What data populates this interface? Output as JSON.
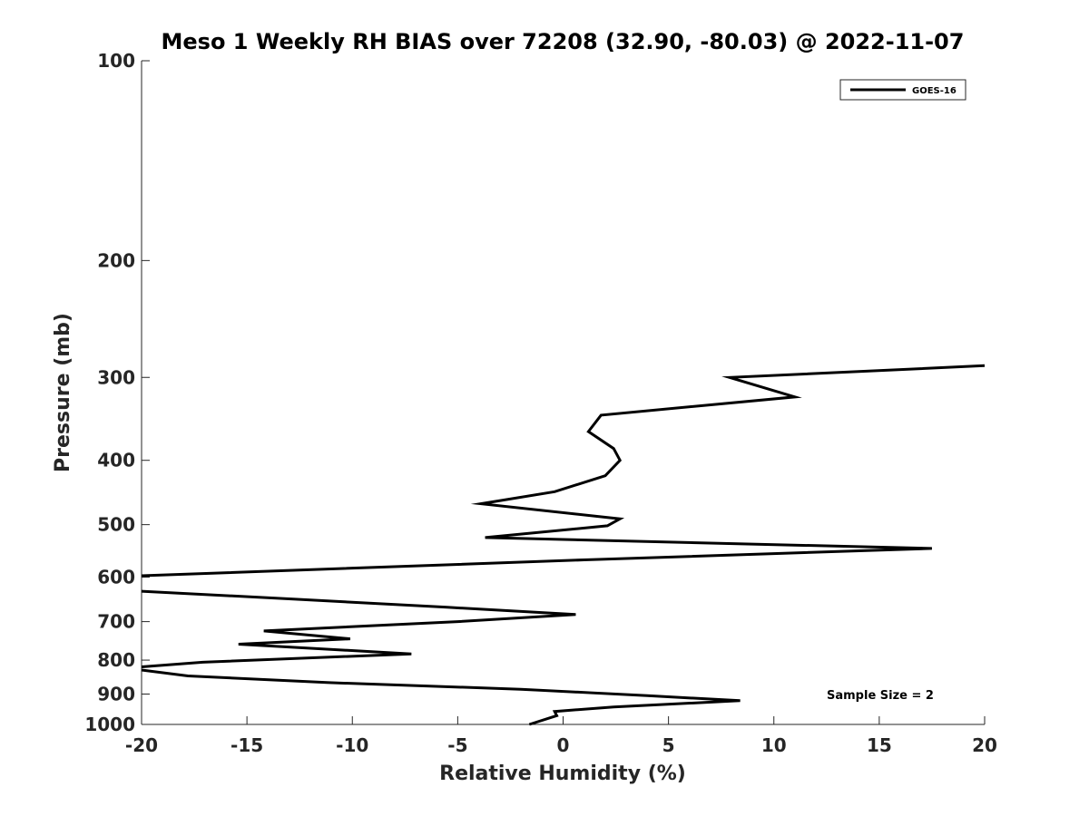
{
  "chart_data": {
    "type": "line",
    "title": "Meso 1 Weekly RH BIAS over 72208 (32.90, -80.03) @ 2022-11-07",
    "xlabel": "Relative Humidity (%)",
    "ylabel": "Pressure (mb)",
    "xlim": [
      -20,
      20
    ],
    "ylim": [
      100,
      1000
    ],
    "y_scale": "log",
    "y_reversed": true,
    "x_ticks": [
      -20,
      -15,
      -10,
      -5,
      0,
      5,
      10,
      15,
      20
    ],
    "x_tick_labels": [
      "-20",
      "-15",
      "-10",
      "-5",
      "0",
      "5",
      "10",
      "15",
      "20"
    ],
    "y_ticks": [
      100,
      200,
      300,
      400,
      500,
      600,
      700,
      800,
      900,
      1000
    ],
    "y_tick_labels": [
      "100",
      "200",
      "300",
      "400",
      "500",
      "600",
      "700",
      "800",
      "900",
      "1000"
    ],
    "grid": false,
    "legend_position": "top-right",
    "annotation": "Sample Size = 2",
    "series": [
      {
        "name": "GOES-16",
        "color": "#000000",
        "x": [
          20.0,
          7.9,
          11.0,
          1.8,
          1.2,
          2.4,
          2.7,
          2.0,
          -0.4,
          -3.9,
          2.7,
          2.1,
          -3.7,
          17.5,
          1.0,
          -20.0,
          null,
          -20.0,
          -12.9,
          -5.5,
          0.6,
          -5.0,
          -14.2,
          -10.1,
          -15.4,
          -7.2,
          -17.1,
          -20.0,
          null,
          -20.0,
          -17.8,
          -11.1,
          -2.0,
          4.0,
          8.4,
          2.4,
          -0.4,
          -0.3,
          -1.6
        ],
        "y": [
          288,
          300,
          321,
          342,
          362,
          384,
          400,
          422,
          446,
          465,
          490,
          502,
          523,
          543,
          565,
          597,
          null,
          630,
          647,
          666,
          683,
          700,
          723,
          743,
          757,
          783,
          806,
          819,
          null,
          828,
          845,
          865,
          885,
          905,
          921,
          941,
          956,
          970,
          1000
        ]
      }
    ]
  }
}
